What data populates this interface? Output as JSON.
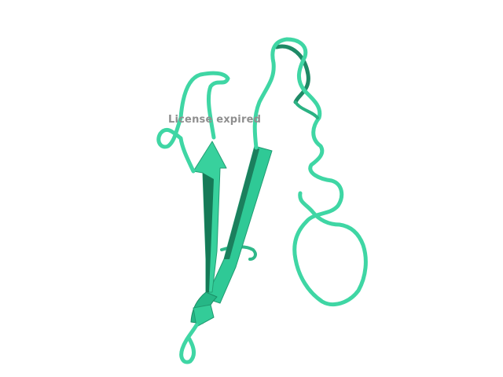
{
  "viewer": {
    "watermark_text": "License expired"
  },
  "structure": {
    "representation": "cartoon",
    "colors": {
      "ribbon": "#3fd6a4",
      "ribbon_light": "#4ce8b4",
      "ribbon_shadow": "#1e8a66",
      "ribbon_dark": "#127a55"
    }
  }
}
